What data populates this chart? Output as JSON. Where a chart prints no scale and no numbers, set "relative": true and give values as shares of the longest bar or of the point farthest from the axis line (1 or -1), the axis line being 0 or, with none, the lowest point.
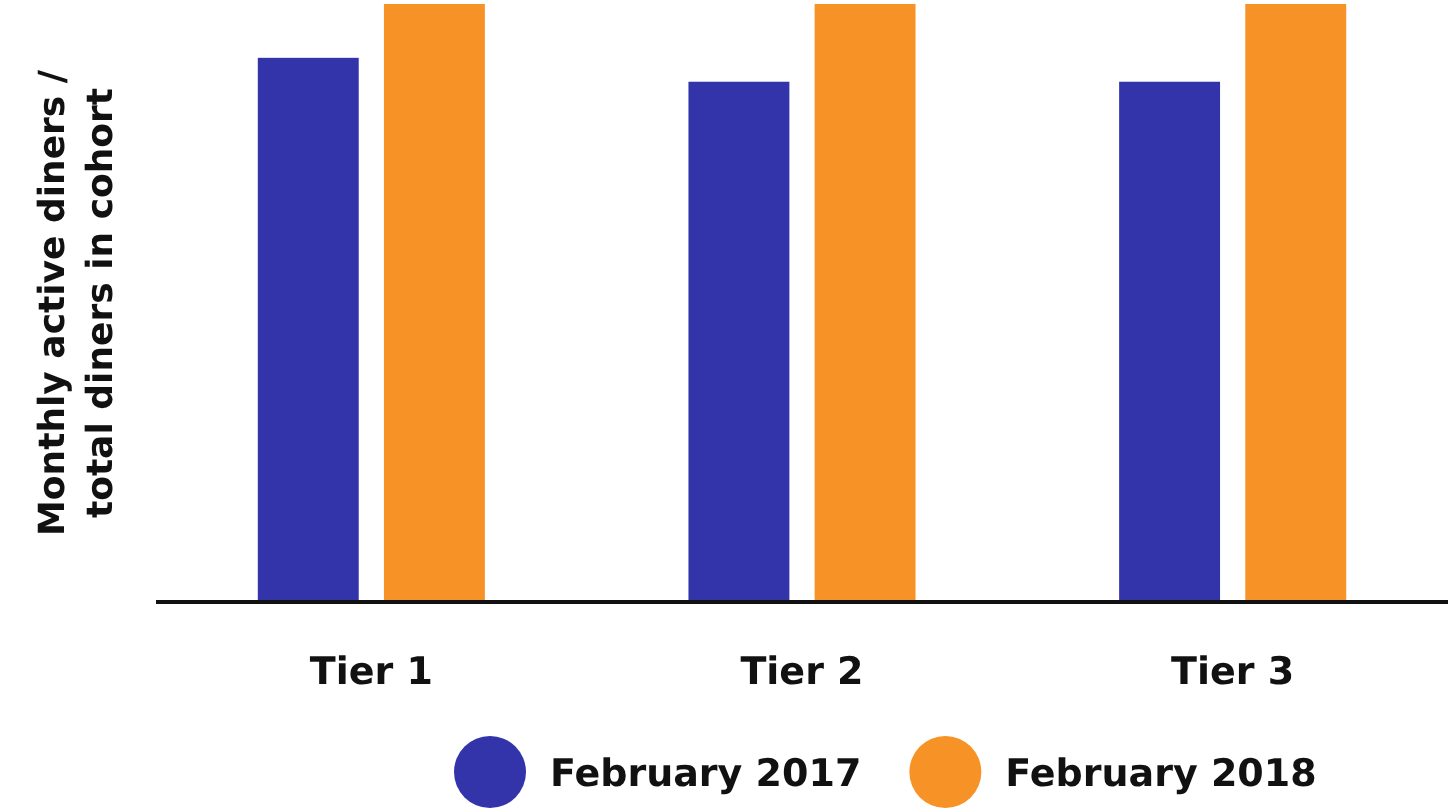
{
  "chart_data": {
    "type": "bar",
    "ylabel": "Monthly active diners /\ntotal diners in cohort",
    "categories": [
      "Tier 1",
      "Tier 2",
      "Tier 3"
    ],
    "relative": true,
    "legend": "bottom",
    "series": [
      {
        "name": "February 2017",
        "color": "#3333aa",
        "values": [
          0.91,
          0.87,
          0.87
        ]
      },
      {
        "name": "February 2018",
        "color": "#f79226",
        "values": [
          1,
          1,
          1
        ]
      }
    ]
  }
}
